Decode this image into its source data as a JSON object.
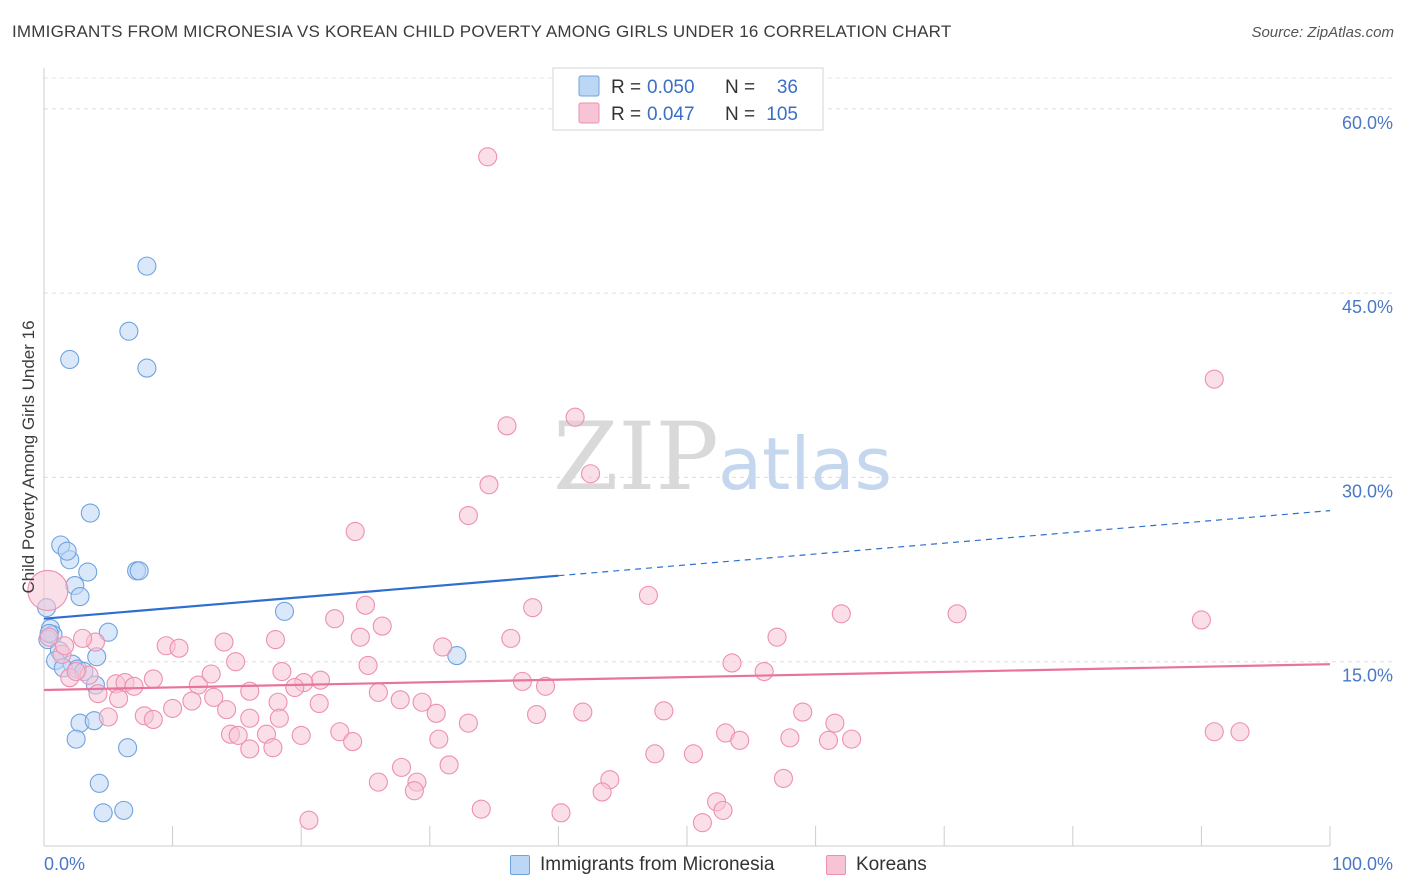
{
  "title": "IMMIGRANTS FROM MICRONESIA VS KOREAN CHILD POVERTY AMONG GIRLS UNDER 16 CORRELATION CHART",
  "source": "Source: ZipAtlas.com",
  "watermark": {
    "zip": "ZIP",
    "atlas": "atlas"
  },
  "chart_data": {
    "type": "scatter",
    "ylabel": "Child Poverty Among Girls Under 16",
    "xlim": [
      0,
      100
    ],
    "ylim": [
      0,
      63
    ],
    "x_ticks": [
      {
        "value": 0,
        "label": "0.0%"
      },
      {
        "value": 100,
        "label": "100.0%"
      }
    ],
    "y_ticks": [
      {
        "value": 15,
        "label": "15.0%"
      },
      {
        "value": 30,
        "label": "30.0%"
      },
      {
        "value": 45,
        "label": "45.0%"
      },
      {
        "value": 60,
        "label": "60.0%"
      }
    ],
    "grid": "horizontal-dashed",
    "legend_position": "top-center",
    "series": [
      {
        "name": "Immigrants from Micronesia",
        "color": "#6fa3e0",
        "fill": "#bcd6f5",
        "trend_color": "#2d6fcf",
        "R": "0.050",
        "N": "36",
        "trend": {
          "x0": 0,
          "y0": 18.5,
          "x1": 40,
          "y1": 22.0,
          "x_ext": 100,
          "y_ext": 27.3
        },
        "points": [
          [
            8.0,
            47.2
          ],
          [
            6.6,
            41.9
          ],
          [
            2.0,
            39.6
          ],
          [
            8.0,
            38.9
          ],
          [
            3.6,
            27.1
          ],
          [
            1.3,
            24.5
          ],
          [
            2.0,
            23.3
          ],
          [
            1.8,
            24.0
          ],
          [
            3.4,
            22.3
          ],
          [
            7.2,
            22.4
          ],
          [
            7.4,
            22.4
          ],
          [
            2.4,
            21.2
          ],
          [
            2.8,
            20.3
          ],
          [
            0.2,
            19.4
          ],
          [
            18.7,
            19.1
          ],
          [
            0.5,
            17.7
          ],
          [
            0.7,
            17.2
          ],
          [
            5.0,
            17.4
          ],
          [
            0.3,
            16.8
          ],
          [
            1.2,
            15.9
          ],
          [
            0.9,
            15.1
          ],
          [
            4.1,
            15.4
          ],
          [
            2.2,
            14.8
          ],
          [
            1.5,
            14.5
          ],
          [
            2.6,
            14.4
          ],
          [
            3.1,
            14.2
          ],
          [
            32.1,
            15.5
          ],
          [
            4.0,
            13.1
          ],
          [
            2.8,
            10.0
          ],
          [
            3.9,
            10.2
          ],
          [
            2.5,
            8.7
          ],
          [
            6.5,
            8.0
          ],
          [
            4.3,
            5.1
          ],
          [
            4.6,
            2.7
          ],
          [
            6.2,
            2.9
          ],
          [
            0.4,
            17.3
          ]
        ]
      },
      {
        "name": "Koreans",
        "color": "#ee8fb0",
        "fill": "#f7c4d6",
        "trend_color": "#e8739b",
        "R": "0.047",
        "N": "105",
        "trend": {
          "x0": 0,
          "y0": 12.7,
          "x1": 100,
          "y1": 14.8
        },
        "points": [
          [
            34.5,
            56.1
          ],
          [
            91.0,
            38.0
          ],
          [
            41.3,
            34.9
          ],
          [
            36.0,
            34.2
          ],
          [
            42.5,
            30.3
          ],
          [
            34.6,
            29.4
          ],
          [
            33.0,
            26.9
          ],
          [
            24.2,
            25.6
          ],
          [
            0.3,
            20.8
          ],
          [
            47.0,
            20.4
          ],
          [
            25.0,
            19.6
          ],
          [
            38.0,
            19.4
          ],
          [
            62.0,
            18.9
          ],
          [
            71.0,
            18.9
          ],
          [
            90.0,
            18.4
          ],
          [
            22.6,
            18.5
          ],
          [
            26.3,
            17.9
          ],
          [
            0.4,
            17.0
          ],
          [
            18.0,
            16.8
          ],
          [
            4.0,
            16.6
          ],
          [
            9.5,
            16.3
          ],
          [
            10.5,
            16.1
          ],
          [
            14.0,
            16.6
          ],
          [
            31.0,
            16.2
          ],
          [
            36.3,
            16.9
          ],
          [
            57.0,
            17.0
          ],
          [
            24.6,
            17.0
          ],
          [
            1.4,
            15.6
          ],
          [
            14.9,
            15.0
          ],
          [
            53.5,
            14.9
          ],
          [
            56.0,
            14.2
          ],
          [
            18.5,
            14.2
          ],
          [
            25.2,
            14.7
          ],
          [
            21.5,
            13.5
          ],
          [
            8.5,
            13.6
          ],
          [
            2.0,
            13.7
          ],
          [
            3.5,
            13.9
          ],
          [
            5.6,
            13.2
          ],
          [
            6.3,
            13.3
          ],
          [
            7.0,
            13.0
          ],
          [
            12.0,
            13.1
          ],
          [
            16.0,
            12.6
          ],
          [
            20.2,
            13.3
          ],
          [
            19.5,
            12.9
          ],
          [
            26.0,
            12.5
          ],
          [
            27.7,
            11.9
          ],
          [
            29.4,
            11.7
          ],
          [
            37.2,
            13.4
          ],
          [
            39.0,
            13.0
          ],
          [
            4.2,
            12.4
          ],
          [
            5.8,
            12.0
          ],
          [
            11.5,
            11.8
          ],
          [
            13.2,
            12.1
          ],
          [
            18.2,
            11.7
          ],
          [
            21.4,
            11.6
          ],
          [
            14.2,
            11.1
          ],
          [
            10.0,
            11.2
          ],
          [
            7.8,
            10.6
          ],
          [
            5.0,
            10.5
          ],
          [
            8.5,
            10.3
          ],
          [
            30.5,
            10.8
          ],
          [
            38.3,
            10.7
          ],
          [
            41.9,
            10.9
          ],
          [
            48.2,
            11.0
          ],
          [
            59.0,
            10.9
          ],
          [
            61.5,
            10.0
          ],
          [
            33.0,
            10.0
          ],
          [
            16.0,
            10.4
          ],
          [
            18.3,
            10.4
          ],
          [
            14.5,
            9.1
          ],
          [
            17.3,
            9.1
          ],
          [
            20.0,
            9.0
          ],
          [
            23.0,
            9.3
          ],
          [
            30.7,
            8.7
          ],
          [
            47.5,
            7.5
          ],
          [
            50.5,
            7.5
          ],
          [
            53.0,
            9.2
          ],
          [
            54.1,
            8.6
          ],
          [
            58.0,
            8.8
          ],
          [
            61.0,
            8.6
          ],
          [
            62.8,
            8.7
          ],
          [
            91.0,
            9.3
          ],
          [
            93.0,
            9.3
          ],
          [
            17.8,
            8.0
          ],
          [
            16.0,
            7.9
          ],
          [
            24.0,
            8.5
          ],
          [
            27.8,
            6.4
          ],
          [
            31.5,
            6.6
          ],
          [
            26.0,
            5.2
          ],
          [
            29.0,
            5.2
          ],
          [
            44.0,
            5.4
          ],
          [
            57.5,
            5.5
          ],
          [
            28.8,
            4.5
          ],
          [
            43.4,
            4.4
          ],
          [
            52.3,
            3.6
          ],
          [
            52.8,
            2.9
          ],
          [
            34.0,
            3.0
          ],
          [
            40.2,
            2.7
          ],
          [
            20.6,
            2.1
          ],
          [
            51.2,
            1.9
          ],
          [
            13.0,
            14.0
          ],
          [
            3.0,
            16.9
          ],
          [
            1.6,
            16.3
          ],
          [
            2.5,
            14.2
          ],
          [
            15.1,
            9.0
          ]
        ]
      }
    ]
  }
}
